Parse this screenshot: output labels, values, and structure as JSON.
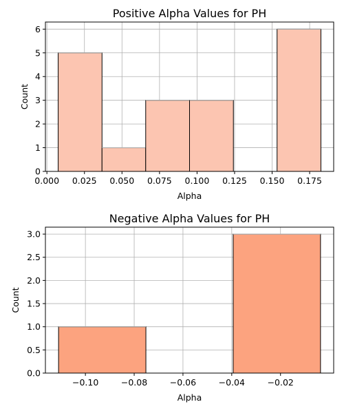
{
  "chart_data": [
    {
      "type": "bar",
      "subtype": "histogram",
      "title": "Positive Alpha Values for PH",
      "xlabel": "Alpha",
      "ylabel": "Count",
      "bin_edges": [
        0.0075,
        0.0367,
        0.0658,
        0.095,
        0.1242,
        0.1533,
        0.1825
      ],
      "values": [
        5,
        1,
        3,
        3,
        0,
        6
      ],
      "xlim": [
        -0.001,
        0.191
      ],
      "ylim": [
        0,
        6.3
      ],
      "xticks": [
        0.0,
        0.025,
        0.05,
        0.075,
        0.1,
        0.125,
        0.15,
        0.175
      ],
      "xtick_labels": [
        "0.000",
        "0.025",
        "0.050",
        "0.075",
        "0.100",
        "0.125",
        "0.150",
        "0.175"
      ],
      "yticks": [
        0,
        1,
        2,
        3,
        4,
        5,
        6
      ],
      "ytick_labels": [
        "0",
        "1",
        "2",
        "3",
        "4",
        "5",
        "6"
      ],
      "grid": true,
      "bar_color": "#fcc5b1",
      "edge_color": "#000000"
    },
    {
      "type": "bar",
      "subtype": "histogram",
      "title": "Negative Alpha Values for PH",
      "xlabel": "Alpha",
      "ylabel": "Count",
      "bin_edges": [
        -0.111,
        -0.0752,
        -0.0394,
        -0.0036
      ],
      "values": [
        1,
        0,
        3
      ],
      "xlim": [
        -0.1164,
        0.0018
      ],
      "ylim": [
        0,
        3.15
      ],
      "xticks": [
        -0.1,
        -0.08,
        -0.06,
        -0.04,
        -0.02
      ],
      "xtick_labels": [
        "−0.10",
        "−0.08",
        "−0.06",
        "−0.04",
        "−0.02"
      ],
      "yticks": [
        0,
        0.5,
        1.0,
        1.5,
        2.0,
        2.5,
        3.0
      ],
      "ytick_labels": [
        "0.0",
        "0.5",
        "1.0",
        "1.5",
        "2.0",
        "2.5",
        "3.0"
      ],
      "grid": true,
      "bar_color": "#fca37f",
      "edge_color": "#000000"
    }
  ]
}
